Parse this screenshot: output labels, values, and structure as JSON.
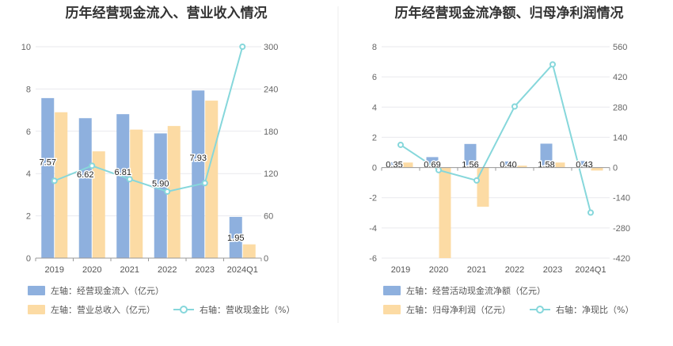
{
  "chart_data": [
    {
      "type": "bar",
      "title": "历年经营现金流入、营业收入情况",
      "categories": [
        "2019",
        "2020",
        "2021",
        "2022",
        "2023",
        "2024Q1"
      ],
      "series": [
        {
          "name": "左轴：经营现金流入（亿元）",
          "axis": "left",
          "kind": "bar",
          "color": "#8eb0de",
          "values": [
            7.57,
            6.62,
            6.81,
            5.9,
            7.93,
            1.95
          ],
          "labels": [
            "7.57",
            "6.62",
            "6.81",
            "5.90",
            "7.93",
            "1.95"
          ]
        },
        {
          "name": "左轴：营业总收入（亿元）",
          "axis": "left",
          "kind": "bar",
          "color": "#fcdba4",
          "values": [
            6.9,
            5.05,
            6.08,
            6.25,
            7.45,
            0.65
          ]
        },
        {
          "name": "右轴：营收现金比（%）",
          "axis": "right",
          "kind": "line",
          "color": "#86d7db",
          "values": [
            109.7,
            131.1,
            112.0,
            94.4,
            106.4,
            300.0
          ]
        }
      ],
      "yleft": {
        "min": 0,
        "max": 10,
        "ticks": [
          "0",
          "2",
          "4",
          "6",
          "8",
          "10"
        ]
      },
      "yright": {
        "min": 0,
        "max": 300,
        "ticks": [
          "0",
          "60",
          "120",
          "180",
          "240",
          "300"
        ]
      }
    },
    {
      "type": "bar",
      "title": "历年经营现金流净额、归母净利润情况",
      "categories": [
        "2019",
        "2020",
        "2021",
        "2022",
        "2023",
        "2024Q1"
      ],
      "series": [
        {
          "name": "左轴：经营活动现金流净额（亿元）",
          "axis": "left",
          "kind": "bar",
          "color": "#8eb0de",
          "values": [
            0.35,
            0.69,
            1.56,
            0.4,
            1.58,
            0.43
          ],
          "labels": [
            "0.35",
            "0.69",
            "1.56",
            "0.40",
            "1.58",
            "0.43"
          ]
        },
        {
          "name": "左轴：归母净利润（亿元）",
          "axis": "left",
          "kind": "bar",
          "color": "#fcdba4",
          "values": [
            0.33,
            -6.0,
            -2.6,
            0.12,
            0.33,
            -0.2
          ]
        },
        {
          "name": "右轴：净现比（%）",
          "axis": "right",
          "kind": "line",
          "color": "#86d7db",
          "values": [
            105,
            -12,
            -60,
            283,
            478,
            -209
          ]
        }
      ],
      "yleft": {
        "min": -6,
        "max": 8,
        "ticks": [
          "-6",
          "-4",
          "-2",
          "0",
          "2",
          "4",
          "6",
          "8"
        ]
      },
      "yright": {
        "min": -420,
        "max": 560,
        "ticks": [
          "-420",
          "-280",
          "-140",
          "0",
          "140",
          "280",
          "420",
          "560"
        ]
      }
    }
  ]
}
